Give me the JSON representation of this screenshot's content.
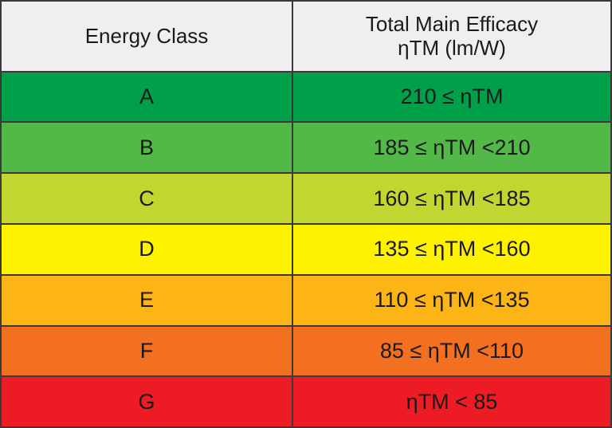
{
  "table": {
    "header": {
      "class_label": "Energy Class",
      "range_label_line1": "Total Main Efficacy",
      "range_label_line2": "ηTM (lm/W)"
    },
    "rows": [
      {
        "class": "A",
        "range": "210 ≤ ηTM",
        "color": "#00a04b"
      },
      {
        "class": "B",
        "range": "185 ≤ ηTM <210",
        "color": "#52b848"
      },
      {
        "class": "C",
        "range": "160 ≤ ηTM <185",
        "color": "#c0d731"
      },
      {
        "class": "D",
        "range": "135 ≤ ηTM <160",
        "color": "#fff200"
      },
      {
        "class": "E",
        "range": "110 ≤ ηTM <135",
        "color": "#fdb515"
      },
      {
        "class": "F",
        "range": "85 ≤ ηTM <110",
        "color": "#f37021"
      },
      {
        "class": "G",
        "range": "ηTM < 85",
        "color": "#ed1c24"
      }
    ]
  }
}
